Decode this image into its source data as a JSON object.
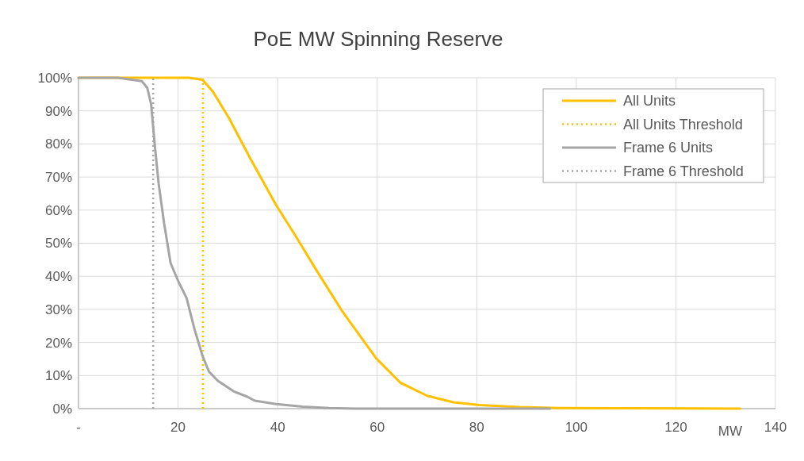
{
  "chart_data": {
    "type": "line",
    "title": "PoE MW Spinning Reserve",
    "xlabel": "MW",
    "xlim": [
      0,
      140
    ],
    "xticks": [
      {
        "value": 0,
        "label": "-"
      },
      20,
      40,
      60,
      80,
      100,
      120,
      140
    ],
    "ylim": [
      0,
      100
    ],
    "yticks": [
      {
        "value": 0,
        "label": "0%"
      },
      {
        "value": 10,
        "label": "10%"
      },
      {
        "value": 20,
        "label": "20%"
      },
      {
        "value": 30,
        "label": "30%"
      },
      {
        "value": 40,
        "label": "40%"
      },
      {
        "value": 50,
        "label": "50%"
      },
      {
        "value": 60,
        "label": "60%"
      },
      {
        "value": 70,
        "label": "70%"
      },
      {
        "value": 80,
        "label": "80%"
      },
      {
        "value": 90,
        "label": "90%"
      },
      {
        "value": 100,
        "label": "100%"
      }
    ],
    "grid": true,
    "legend": "top right",
    "marker": "none",
    "series": [
      {
        "name": "All Units",
        "color": "#ffc000",
        "line_style": "solid",
        "x": [
          0,
          22.2,
          24.9,
          27,
          30.2,
          34.4,
          39.7,
          43.4,
          47.6,
          52.9,
          59.8,
          64.6,
          70,
          75.3,
          80.6,
          88.5,
          96.5,
          110,
          132.9
        ],
        "values": [
          100,
          100,
          99.4,
          95.8,
          87.9,
          75.9,
          61.5,
          52.7,
          42.3,
          29.6,
          15.2,
          7.9,
          3.9,
          1.9,
          1.1,
          0.5,
          0.2,
          0.1,
          0
        ]
      },
      {
        "name": "All Units Threshold",
        "color": "#ffc000",
        "line_style": "dotted",
        "x": [
          25,
          25
        ],
        "values": [
          0,
          100
        ]
      },
      {
        "name": "Frame 6 Units",
        "color": "#a5a5a5",
        "line_style": "solid",
        "x": [
          0,
          7.9,
          12.7,
          13.8,
          14.6,
          15.3,
          16.1,
          17.2,
          18.5,
          20.1,
          21.7,
          23.3,
          24.9,
          26.2,
          28,
          31.2,
          33.9,
          35.4,
          39.7,
          45,
          50.3,
          55.6,
          94.7
        ],
        "values": [
          100,
          100,
          99,
          97,
          91.9,
          80,
          68,
          56,
          44,
          38.3,
          33.5,
          24,
          16,
          11.2,
          8.4,
          5.2,
          3.6,
          2.4,
          1.4,
          0.6,
          0.2,
          0,
          0
        ]
      },
      {
        "name": "Frame 6 Threshold",
        "color": "#a5a5a5",
        "line_style": "dotted",
        "x": [
          15,
          15
        ],
        "values": [
          0,
          100
        ]
      }
    ]
  }
}
